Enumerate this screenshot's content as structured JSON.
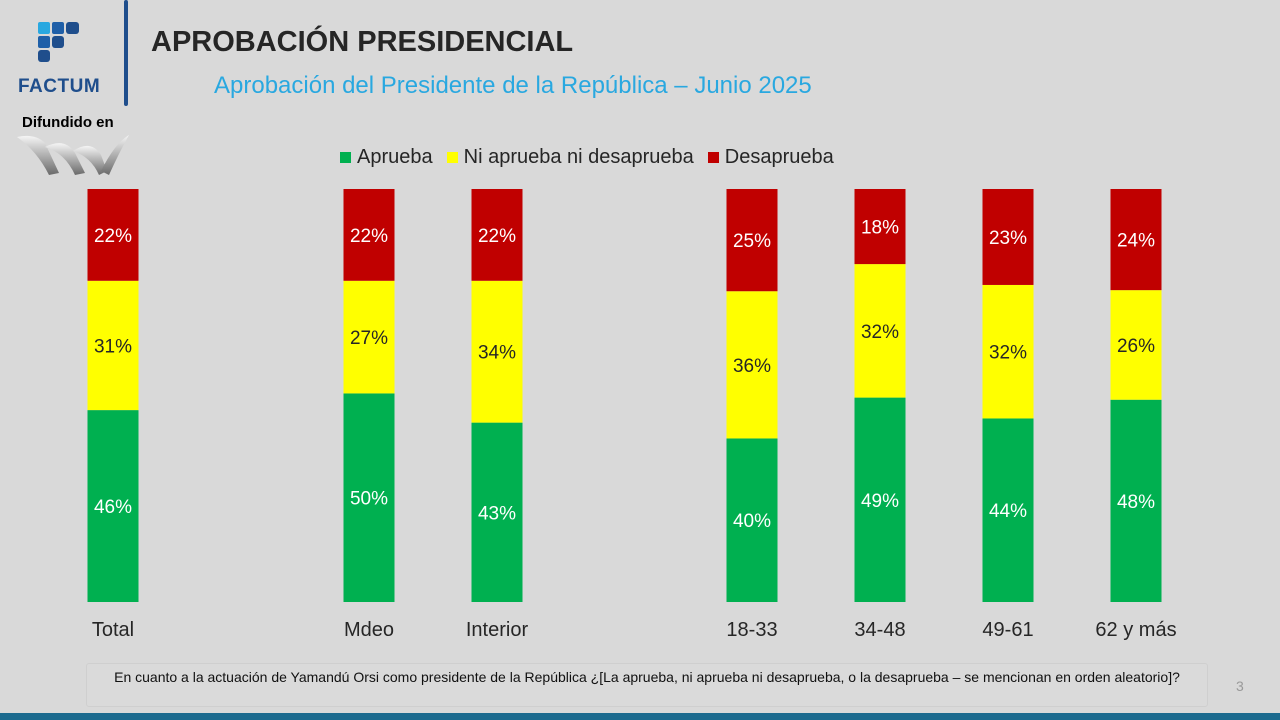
{
  "header": {
    "title": "APROBACIÓN PRESIDENCIAL",
    "subtitle": "Aprobación del Presidente de la República – Junio 2025",
    "brand": "FACTUM",
    "difundido": "Difundido en"
  },
  "footer": {
    "question": "En cuanto a la actuación de Yamandú Orsi como presidente de la República ¿[La aprueba, ni aprueba ni desaprueba, o la desaprueba – se mencionan en orden aleatorio]?",
    "page_number": "3"
  },
  "colors": {
    "aprueba": "#00b050",
    "ni": "#ffff00",
    "desaprueba": "#c00000",
    "accent_blue": "#29a8e0",
    "brand_blue": "#1f4e8c"
  },
  "chart_data": {
    "type": "bar",
    "stacked": "100%",
    "title": "",
    "legend_position": "top",
    "categories": [
      "Total",
      "Mdeo",
      "Interior",
      "18-33",
      "34-48",
      "49-61",
      "62 y más"
    ],
    "series": [
      {
        "name": "Aprueba",
        "color": "#00b050",
        "values": [
          46,
          50,
          43,
          40,
          49,
          44,
          48
        ]
      },
      {
        "name": "Ni aprueba ni desaprueba",
        "color": "#ffff00",
        "values": [
          31,
          27,
          34,
          36,
          32,
          32,
          26
        ]
      },
      {
        "name": "Desaprueba",
        "color": "#c00000",
        "values": [
          22,
          22,
          22,
          25,
          18,
          23,
          24
        ]
      }
    ]
  }
}
